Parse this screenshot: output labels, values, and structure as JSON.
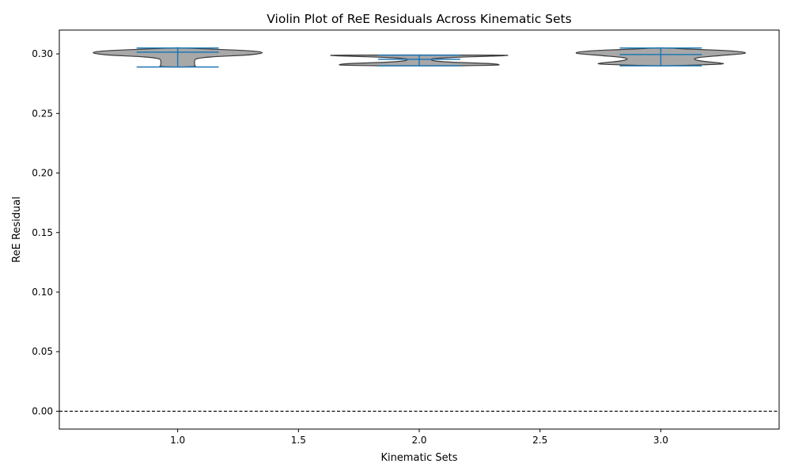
{
  "chart_data": {
    "type": "violin",
    "title": "Violin Plot of ReE Residuals Across Kinematic Sets",
    "xlabel": "Kinematic Sets",
    "ylabel": "ReE Residual",
    "xlim": [
      0.51,
      3.49
    ],
    "ylim": [
      -0.015,
      0.32
    ],
    "xticks": [
      1.0,
      1.5,
      2.0,
      2.5,
      3.0
    ],
    "xtick_labels": [
      "1.0",
      "1.5",
      "2.0",
      "2.5",
      "3.0"
    ],
    "yticks": [
      0.0,
      0.05,
      0.1,
      0.15,
      0.2,
      0.25,
      0.3
    ],
    "ytick_labels": [
      "0.00",
      "0.05",
      "0.10",
      "0.15",
      "0.20",
      "0.25",
      "0.30"
    ],
    "reference_line": {
      "y": 0.0,
      "style": "dashed",
      "color": "#000000"
    },
    "grid": false,
    "colors": {
      "violin_fill": "#a8a8a8",
      "violin_edge": "#3a3a3a",
      "stats_lines": "#1f77b4"
    },
    "violins": [
      {
        "position": 1.0,
        "min": 0.289,
        "mean": 0.3015,
        "max": 0.305,
        "density_profile": [
          {
            "y": 0.289,
            "w": 0.02
          },
          {
            "y": 0.2895,
            "w": 0.07
          },
          {
            "y": 0.2905,
            "w": 0.07
          },
          {
            "y": 0.292,
            "w": 0.07
          },
          {
            "y": 0.294,
            "w": 0.07
          },
          {
            "y": 0.296,
            "w": 0.08
          },
          {
            "y": 0.2975,
            "w": 0.14
          },
          {
            "y": 0.299,
            "w": 0.28
          },
          {
            "y": 0.3,
            "w": 0.33
          },
          {
            "y": 0.301,
            "w": 0.35
          },
          {
            "y": 0.302,
            "w": 0.33
          },
          {
            "y": 0.303,
            "w": 0.26
          },
          {
            "y": 0.304,
            "w": 0.14
          },
          {
            "y": 0.305,
            "w": 0.02
          }
        ]
      },
      {
        "position": 2.0,
        "min": 0.29,
        "mean": 0.2955,
        "max": 0.299,
        "density_profile": [
          {
            "y": 0.29,
            "w": 0.15
          },
          {
            "y": 0.2905,
            "w": 0.3
          },
          {
            "y": 0.291,
            "w": 0.33
          },
          {
            "y": 0.292,
            "w": 0.28
          },
          {
            "y": 0.293,
            "w": 0.14
          },
          {
            "y": 0.294,
            "w": 0.07
          },
          {
            "y": 0.295,
            "w": 0.05
          },
          {
            "y": 0.296,
            "w": 0.06
          },
          {
            "y": 0.297,
            "w": 0.13
          },
          {
            "y": 0.298,
            "w": 0.28
          },
          {
            "y": 0.2985,
            "w": 0.35
          },
          {
            "y": 0.299,
            "w": 0.3
          }
        ]
      },
      {
        "position": 3.0,
        "min": 0.29,
        "mean": 0.2995,
        "max": 0.305,
        "density_profile": [
          {
            "y": 0.29,
            "w": 0.02
          },
          {
            "y": 0.2905,
            "w": 0.12
          },
          {
            "y": 0.2915,
            "w": 0.25
          },
          {
            "y": 0.2925,
            "w": 0.24
          },
          {
            "y": 0.294,
            "w": 0.17
          },
          {
            "y": 0.2955,
            "w": 0.14
          },
          {
            "y": 0.297,
            "w": 0.16
          },
          {
            "y": 0.2985,
            "w": 0.24
          },
          {
            "y": 0.3,
            "w": 0.33
          },
          {
            "y": 0.301,
            "w": 0.35
          },
          {
            "y": 0.302,
            "w": 0.32
          },
          {
            "y": 0.303,
            "w": 0.25
          },
          {
            "y": 0.304,
            "w": 0.12
          },
          {
            "y": 0.305,
            "w": 0.02
          }
        ]
      }
    ]
  }
}
